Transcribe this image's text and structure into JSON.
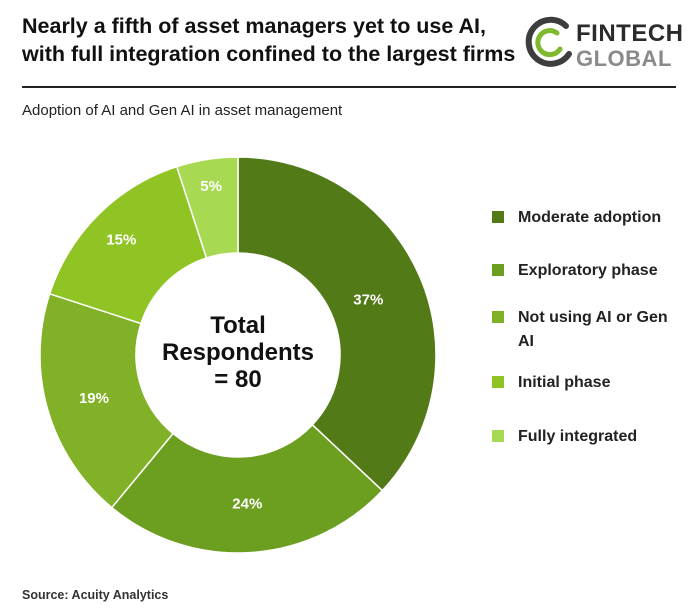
{
  "header": {
    "title_line1": "Nearly a fifth of asset managers yet to use AI,",
    "title_line2": "with full integration confined to the largest firms"
  },
  "logo": {
    "word_top": "FINTECH",
    "word_bottom": "GLOBAL",
    "ring_colors": [
      "#3d3d3d",
      "#7fb92e"
    ]
  },
  "subtitle": "Adoption of AI and Gen AI in asset management",
  "center_label": [
    "Total",
    "Respondents",
    "= 80"
  ],
  "source": "Source: Acuity Analytics",
  "chart_data": {
    "type": "pie",
    "title": "Adoption of AI and Gen AI in asset management",
    "donut": true,
    "legend_position": "right",
    "categories": [
      "Moderate adoption",
      "Exploratory phase",
      "Not using AI or Gen AI",
      "Initial phase",
      "Fully integrated"
    ],
    "values": [
      37,
      24,
      19,
      15,
      5
    ],
    "labels": [
      "37%",
      "24%",
      "19%",
      "15%",
      "5%"
    ],
    "colors": [
      "#527a17",
      "#6c9e20",
      "#80b126",
      "#90c425",
      "#a8d952"
    ],
    "label_color": "#ffffff"
  },
  "legend": {
    "items": [
      {
        "label": "Moderate adoption",
        "color": "#527a17"
      },
      {
        "label": "Exploratory phase",
        "color": "#6c9e20"
      },
      {
        "label": "Not using AI or Gen AI",
        "color": "#80b126"
      },
      {
        "label": "Initial phase",
        "color": "#90c425"
      },
      {
        "label": "Fully integrated",
        "color": "#a8d952"
      }
    ]
  }
}
